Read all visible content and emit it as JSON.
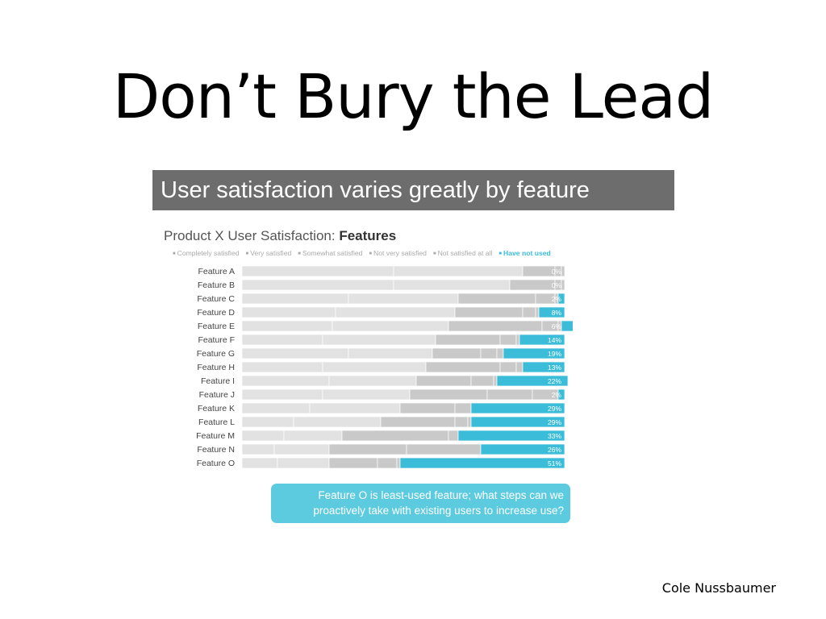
{
  "slide": {
    "title": "Don’t Bury the Lead",
    "headline": "User satisfaction varies greatly by feature",
    "attribution": "Cole Nussbaumer"
  },
  "callout": {
    "text": "Feature O is least-used feature; what steps can we proactively take with existing users to increase use?"
  },
  "colors": {
    "have_not_used": "#3bbcd9",
    "neutral_light": "#e2e2e2",
    "neutral_dark": "#c9c9c9",
    "headline_bg": "#6d6d6d",
    "callout_bg": "#5ccbe0"
  },
  "chart_data": {
    "type": "bar",
    "orientation": "horizontal",
    "stacked": true,
    "percent": true,
    "title_prefix": "Product X User Satisfaction: ",
    "title_bold": "Features",
    "xlim": [
      0,
      100
    ],
    "legend_placement": "top",
    "categories": [
      "Feature A",
      "Feature B",
      "Feature C",
      "Feature D",
      "Feature E",
      "Feature F",
      "Feature G",
      "Feature H",
      "Feature I",
      "Feature J",
      "Feature K",
      "Feature L",
      "Feature M",
      "Feature N",
      "Feature O"
    ],
    "series": [
      {
        "name": "Completely satisfied",
        "values": [
          47,
          47,
          33,
          29,
          28,
          25,
          33,
          25,
          27,
          25,
          21,
          16,
          13,
          10,
          11
        ]
      },
      {
        "name": "Very satisfied",
        "values": [
          40,
          36,
          34,
          37,
          36,
          35,
          26,
          32,
          27,
          27,
          28,
          27,
          18,
          17,
          16
        ]
      },
      {
        "name": "Somewhat satisfied",
        "values": [
          10,
          14,
          24,
          21,
          29,
          20,
          15,
          23,
          17,
          24,
          17,
          23,
          33,
          24,
          15
        ]
      },
      {
        "name": "Not very satisfied",
        "values": [
          2,
          2,
          6,
          4,
          5,
          5,
          5,
          5,
          7,
          14,
          5,
          4,
          3,
          23,
          6
        ]
      },
      {
        "name": "Not satisfied at all",
        "values": [
          1,
          1,
          1,
          1,
          1,
          1,
          2,
          2,
          1,
          8,
          0,
          1,
          0,
          0,
          1
        ]
      },
      {
        "name": "Have not used",
        "values": [
          0,
          0,
          2,
          8,
          6,
          14,
          19,
          13,
          22,
          2,
          29,
          29,
          33,
          26,
          51
        ]
      }
    ],
    "data_labels": [
      "0%",
      "0%",
      "2%",
      "8%",
      "6%",
      "14%",
      "19%",
      "13%",
      "22%",
      "2%",
      "29%",
      "29%",
      "33%",
      "26%",
      "51%"
    ]
  }
}
